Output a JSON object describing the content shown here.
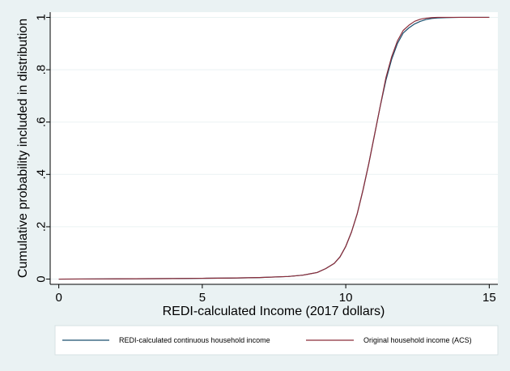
{
  "chart_data": {
    "type": "line",
    "xlabel": "REDI-calculated Income (2017 dollars)",
    "ylabel": "Cumulative probability included in distribution",
    "xlim": [
      -0.3,
      15.3
    ],
    "ylim": [
      -0.02,
      1.02
    ],
    "xticks": [
      0,
      5,
      10,
      15
    ],
    "xtick_labels": [
      "0",
      "5",
      "10",
      "15"
    ],
    "yticks": [
      0,
      0.2,
      0.4,
      0.6,
      0.8,
      1
    ],
    "ytick_labels": [
      "0",
      ".2",
      ".4",
      ".6",
      ".8",
      "1"
    ],
    "grid": "horizontal",
    "legend_position": "bottom",
    "colors": {
      "background": "#eaf2f3",
      "plot_background": "#ffffff",
      "grid": "#eaf2f3"
    },
    "series": [
      {
        "name": "REDI-calculated continuous household income",
        "color": "#1a4f6e",
        "x": [
          0,
          2,
          4,
          5,
          6,
          7,
          8,
          8.5,
          9,
          9.3,
          9.6,
          9.8,
          10,
          10.2,
          10.4,
          10.6,
          10.8,
          11,
          11.2,
          11.4,
          11.6,
          11.8,
          12,
          12.2,
          12.4,
          12.6,
          12.8,
          13,
          13.2,
          13.5,
          14,
          15
        ],
        "values": [
          0,
          0.001,
          0.002,
          0.003,
          0.004,
          0.006,
          0.01,
          0.015,
          0.025,
          0.04,
          0.06,
          0.085,
          0.125,
          0.18,
          0.25,
          0.34,
          0.44,
          0.55,
          0.66,
          0.76,
          0.84,
          0.9,
          0.94,
          0.96,
          0.975,
          0.985,
          0.992,
          0.996,
          0.998,
          0.999,
          1,
          1
        ]
      },
      {
        "name": "Original household income (ACS)",
        "color": "#8c2d3a",
        "x": [
          0,
          2,
          4,
          5,
          6,
          7,
          8,
          8.5,
          9,
          9.3,
          9.6,
          9.8,
          10,
          10.2,
          10.4,
          10.6,
          10.8,
          11,
          11.2,
          11.4,
          11.6,
          11.8,
          12,
          12.2,
          12.4,
          12.6,
          12.8,
          13,
          13.2,
          13.5,
          14,
          15
        ],
        "values": [
          0,
          0.001,
          0.002,
          0.003,
          0.004,
          0.006,
          0.01,
          0.015,
          0.025,
          0.04,
          0.06,
          0.085,
          0.125,
          0.18,
          0.25,
          0.34,
          0.44,
          0.55,
          0.66,
          0.77,
          0.85,
          0.91,
          0.95,
          0.97,
          0.985,
          0.993,
          0.997,
          0.999,
          1,
          1,
          1,
          1
        ]
      }
    ]
  }
}
